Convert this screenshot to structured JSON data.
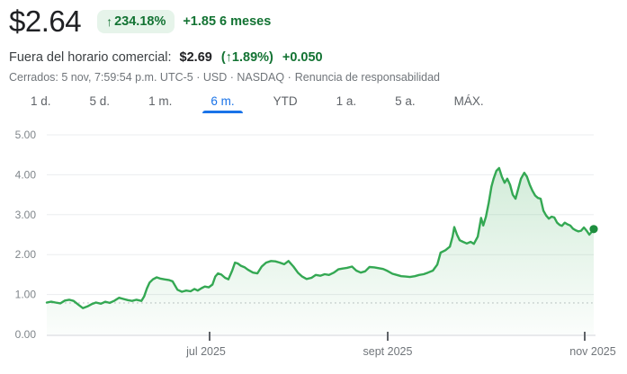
{
  "colors": {
    "price_text": "#202124",
    "green_text": "#137333",
    "badge_bg": "#e6f4ea",
    "tab_active_blue": "#1a73e8",
    "tab_gray": "#5f6368",
    "muted_gray": "#70757a",
    "axis_label_gray": "#80868b",
    "grid": "#ebedef",
    "axis_line": "#dadce0",
    "baseline_dotted": "#d5d7da",
    "line_green": "#34a853",
    "dot_green": "#1e8e3e"
  },
  "header": {
    "price": "$2.64",
    "badge_arrow": "↑",
    "change_pct": "234.18%",
    "change_abs": "+1.85",
    "period_label": "6 meses",
    "after_hours": {
      "label": "Fuera del horario comercial:",
      "price": "$2.69",
      "pct": "(↑1.89%)",
      "abs": "+0.050"
    },
    "status_text": "Cerrados: 5 nov, 7:59:54 p.m. UTC-5 · USD · NASDAQ ·",
    "disclaimer_link": "Renuncia de responsabilidad"
  },
  "tabs": {
    "items": [
      {
        "id": "1d",
        "label": "1 d."
      },
      {
        "id": "5d",
        "label": "5 d."
      },
      {
        "id": "1m",
        "label": "1 m."
      },
      {
        "id": "6m",
        "label": "6 m."
      },
      {
        "id": "ytd",
        "label": "YTD"
      },
      {
        "id": "1a",
        "label": "1 a."
      },
      {
        "id": "5a",
        "label": "5 a."
      },
      {
        "id": "max",
        "label": "MÁX."
      }
    ],
    "active_id": "6m"
  },
  "chart_data": {
    "type": "area",
    "ylim": [
      0,
      5
    ],
    "y_tick_labels": [
      "0.00",
      "1.00",
      "2.00",
      "3.00",
      "4.00",
      "5.00"
    ],
    "x_tick_labels": [
      "jul 2025",
      "sept 2025",
      "nov 2025"
    ],
    "baseline_value": 0.79,
    "last_price": 2.64,
    "grid": true,
    "points": [
      [
        0.0,
        0.8
      ],
      [
        0.008,
        0.82
      ],
      [
        0.016,
        0.8
      ],
      [
        0.025,
        0.78
      ],
      [
        0.033,
        0.85
      ],
      [
        0.041,
        0.87
      ],
      [
        0.049,
        0.84
      ],
      [
        0.058,
        0.74
      ],
      [
        0.066,
        0.66
      ],
      [
        0.074,
        0.7
      ],
      [
        0.082,
        0.76
      ],
      [
        0.09,
        0.8
      ],
      [
        0.099,
        0.77
      ],
      [
        0.107,
        0.82
      ],
      [
        0.115,
        0.79
      ],
      [
        0.123,
        0.84
      ],
      [
        0.132,
        0.92
      ],
      [
        0.14,
        0.89
      ],
      [
        0.148,
        0.86
      ],
      [
        0.156,
        0.84
      ],
      [
        0.164,
        0.87
      ],
      [
        0.173,
        0.84
      ],
      [
        0.178,
        0.95
      ],
      [
        0.183,
        1.15
      ],
      [
        0.188,
        1.3
      ],
      [
        0.194,
        1.38
      ],
      [
        0.201,
        1.43
      ],
      [
        0.207,
        1.4
      ],
      [
        0.215,
        1.38
      ],
      [
        0.224,
        1.36
      ],
      [
        0.23,
        1.33
      ],
      [
        0.239,
        1.12
      ],
      [
        0.247,
        1.07
      ],
      [
        0.255,
        1.1
      ],
      [
        0.263,
        1.08
      ],
      [
        0.27,
        1.14
      ],
      [
        0.276,
        1.1
      ],
      [
        0.283,
        1.16
      ],
      [
        0.289,
        1.2
      ],
      [
        0.296,
        1.18
      ],
      [
        0.303,
        1.25
      ],
      [
        0.308,
        1.45
      ],
      [
        0.313,
        1.53
      ],
      [
        0.319,
        1.5
      ],
      [
        0.326,
        1.42
      ],
      [
        0.332,
        1.38
      ],
      [
        0.339,
        1.6
      ],
      [
        0.344,
        1.8
      ],
      [
        0.349,
        1.78
      ],
      [
        0.355,
        1.72
      ],
      [
        0.362,
        1.68
      ],
      [
        0.368,
        1.62
      ],
      [
        0.377,
        1.55
      ],
      [
        0.385,
        1.53
      ],
      [
        0.393,
        1.7
      ],
      [
        0.401,
        1.8
      ],
      [
        0.41,
        1.84
      ],
      [
        0.418,
        1.83
      ],
      [
        0.426,
        1.8
      ],
      [
        0.434,
        1.76
      ],
      [
        0.442,
        1.84
      ],
      [
        0.451,
        1.7
      ],
      [
        0.459,
        1.55
      ],
      [
        0.467,
        1.45
      ],
      [
        0.475,
        1.39
      ],
      [
        0.484,
        1.42
      ],
      [
        0.492,
        1.49
      ],
      [
        0.5,
        1.47
      ],
      [
        0.508,
        1.51
      ],
      [
        0.516,
        1.49
      ],
      [
        0.525,
        1.55
      ],
      [
        0.533,
        1.63
      ],
      [
        0.541,
        1.65
      ],
      [
        0.549,
        1.67
      ],
      [
        0.558,
        1.7
      ],
      [
        0.566,
        1.6
      ],
      [
        0.574,
        1.55
      ],
      [
        0.582,
        1.58
      ],
      [
        0.59,
        1.69
      ],
      [
        0.599,
        1.68
      ],
      [
        0.607,
        1.66
      ],
      [
        0.615,
        1.64
      ],
      [
        0.623,
        1.59
      ],
      [
        0.632,
        1.52
      ],
      [
        0.64,
        1.49
      ],
      [
        0.648,
        1.46
      ],
      [
        0.656,
        1.45
      ],
      [
        0.664,
        1.44
      ],
      [
        0.673,
        1.46
      ],
      [
        0.681,
        1.49
      ],
      [
        0.689,
        1.51
      ],
      [
        0.697,
        1.55
      ],
      [
        0.706,
        1.6
      ],
      [
        0.714,
        1.75
      ],
      [
        0.72,
        2.05
      ],
      [
        0.729,
        2.11
      ],
      [
        0.737,
        2.2
      ],
      [
        0.742,
        2.45
      ],
      [
        0.745,
        2.69
      ],
      [
        0.75,
        2.5
      ],
      [
        0.755,
        2.36
      ],
      [
        0.761,
        2.32
      ],
      [
        0.768,
        2.28
      ],
      [
        0.775,
        2.32
      ],
      [
        0.781,
        2.27
      ],
      [
        0.788,
        2.45
      ],
      [
        0.794,
        2.92
      ],
      [
        0.798,
        2.73
      ],
      [
        0.803,
        2.95
      ],
      [
        0.808,
        3.3
      ],
      [
        0.813,
        3.7
      ],
      [
        0.817,
        3.9
      ],
      [
        0.822,
        4.1
      ],
      [
        0.827,
        4.17
      ],
      [
        0.832,
        3.95
      ],
      [
        0.837,
        3.8
      ],
      [
        0.842,
        3.9
      ],
      [
        0.847,
        3.75
      ],
      [
        0.852,
        3.5
      ],
      [
        0.857,
        3.4
      ],
      [
        0.862,
        3.65
      ],
      [
        0.867,
        3.9
      ],
      [
        0.873,
        4.05
      ],
      [
        0.878,
        3.95
      ],
      [
        0.883,
        3.75
      ],
      [
        0.888,
        3.6
      ],
      [
        0.893,
        3.48
      ],
      [
        0.898,
        3.42
      ],
      [
        0.903,
        3.4
      ],
      [
        0.908,
        3.1
      ],
      [
        0.913,
        2.98
      ],
      [
        0.918,
        2.9
      ],
      [
        0.923,
        2.95
      ],
      [
        0.928,
        2.93
      ],
      [
        0.933,
        2.8
      ],
      [
        0.938,
        2.74
      ],
      [
        0.942,
        2.72
      ],
      [
        0.947,
        2.8
      ],
      [
        0.952,
        2.76
      ],
      [
        0.957,
        2.73
      ],
      [
        0.962,
        2.65
      ],
      [
        0.967,
        2.61
      ],
      [
        0.972,
        2.58
      ],
      [
        0.977,
        2.6
      ],
      [
        0.982,
        2.68
      ],
      [
        0.987,
        2.6
      ],
      [
        0.992,
        2.5
      ],
      [
        0.997,
        2.58
      ],
      [
        1.0,
        2.64
      ]
    ]
  }
}
